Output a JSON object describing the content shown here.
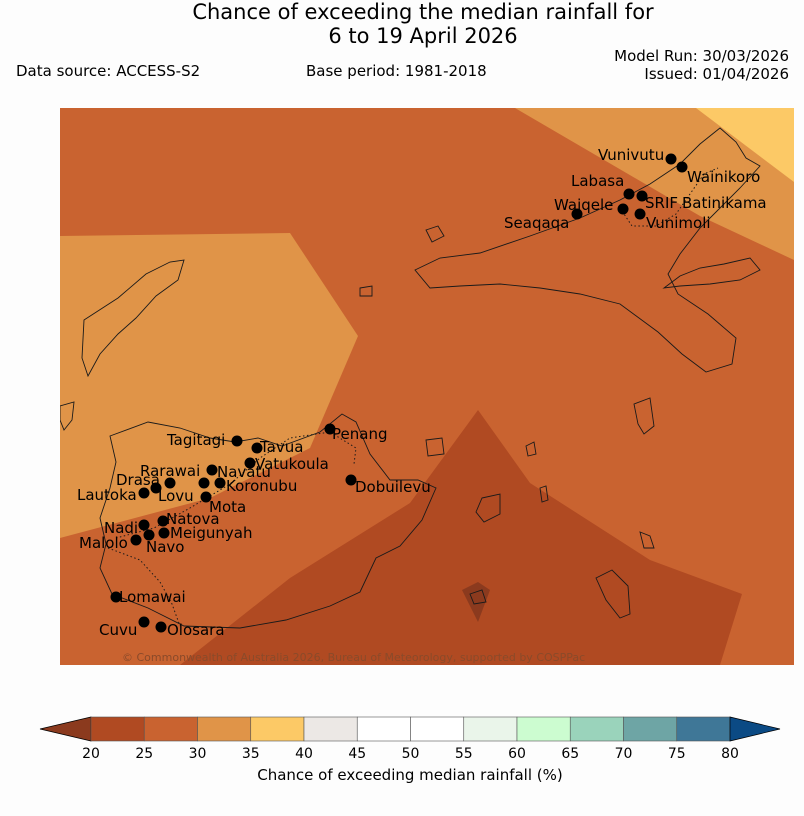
{
  "title": {
    "line1": "Chance of exceeding the median rainfall for",
    "line2": "6 to 19 April 2026"
  },
  "header": {
    "model_run": "Model Run: 30/03/2026",
    "issued": "Issued: 01/04/2026",
    "data_source": "Data source: ACCESS-S2",
    "base_period": "Base period: 1981-2018"
  },
  "map": {
    "copyright": "© Commonwealth of Australia 2026, Bureau of Meteorology, supported by COSPPac",
    "places": [
      {
        "name": "Vunivutu"
      },
      {
        "name": "Wainikoro"
      },
      {
        "name": "Labasa"
      },
      {
        "name": "Batinikama"
      },
      {
        "name": "SRIF"
      },
      {
        "name": "Waiqele"
      },
      {
        "name": "Seaqaqa"
      },
      {
        "name": "Vunimoli"
      },
      {
        "name": "Tagitagi"
      },
      {
        "name": "Penang"
      },
      {
        "name": "Tavua"
      },
      {
        "name": "Vatukoula"
      },
      {
        "name": "Rarawai"
      },
      {
        "name": "Navatu"
      },
      {
        "name": "Koronubu"
      },
      {
        "name": "Drasa"
      },
      {
        "name": "Lautoka"
      },
      {
        "name": "Lovu"
      },
      {
        "name": "Mota"
      },
      {
        "name": "Dobuilevu"
      },
      {
        "name": "Natova"
      },
      {
        "name": "Nadi"
      },
      {
        "name": "Meigunyah"
      },
      {
        "name": "Malolo"
      },
      {
        "name": "Navo"
      },
      {
        "name": "Lomawai"
      },
      {
        "name": "Cuvu"
      },
      {
        "name": "Olosara"
      }
    ]
  },
  "colorbar": {
    "label": "Chance of exceeding median rainfall (%)",
    "ticks": [
      "20",
      "25",
      "30",
      "35",
      "40",
      "45",
      "50",
      "55",
      "60",
      "65",
      "70",
      "75",
      "80"
    ],
    "colors": {
      "below": "#8b3a1e",
      "bins": [
        "#b04a22",
        "#c96330",
        "#e09448",
        "#fcc966",
        "#ece8e5",
        "#ffffff",
        "#ffffff",
        "#eaf5ea",
        "#ccfcd0",
        "#9ad3bb",
        "#6ea5a5",
        "#3f7797"
      ],
      "above": "#0b4a84"
    }
  }
}
